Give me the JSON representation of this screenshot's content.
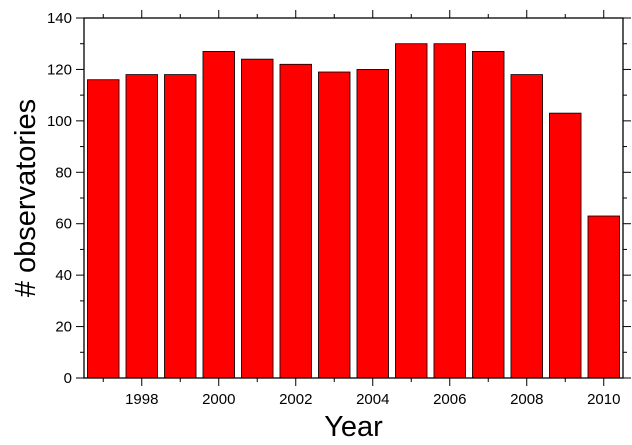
{
  "chart_data": {
    "type": "bar",
    "title": "",
    "xlabel": "Year",
    "ylabel": "# observatories",
    "x": [
      1997,
      1998,
      1999,
      2000,
      2001,
      2002,
      2003,
      2004,
      2005,
      2006,
      2007,
      2008,
      2009,
      2010
    ],
    "values": [
      116,
      118,
      118,
      127,
      124,
      122,
      119,
      120,
      130,
      130,
      127,
      118,
      103,
      63
    ],
    "xlim": [
      1996.5,
      2010.5
    ],
    "ylim": [
      0,
      140
    ],
    "xticks": [
      1998,
      2000,
      2002,
      2004,
      2006,
      2008,
      2010
    ],
    "xtick_labels": [
      "1998",
      "2000",
      "2002",
      "2004",
      "2006",
      "2008",
      "2010"
    ],
    "yticks": [
      0,
      20,
      40,
      60,
      80,
      100,
      120,
      140
    ],
    "ytick_labels": [
      "0",
      "20",
      "40",
      "60",
      "80",
      "100",
      "120",
      "140"
    ],
    "grid": false,
    "legend": "none",
    "colors": {
      "bar_fill": "#ff0000",
      "bar_edge": "#000000",
      "axis": "#000000"
    }
  }
}
